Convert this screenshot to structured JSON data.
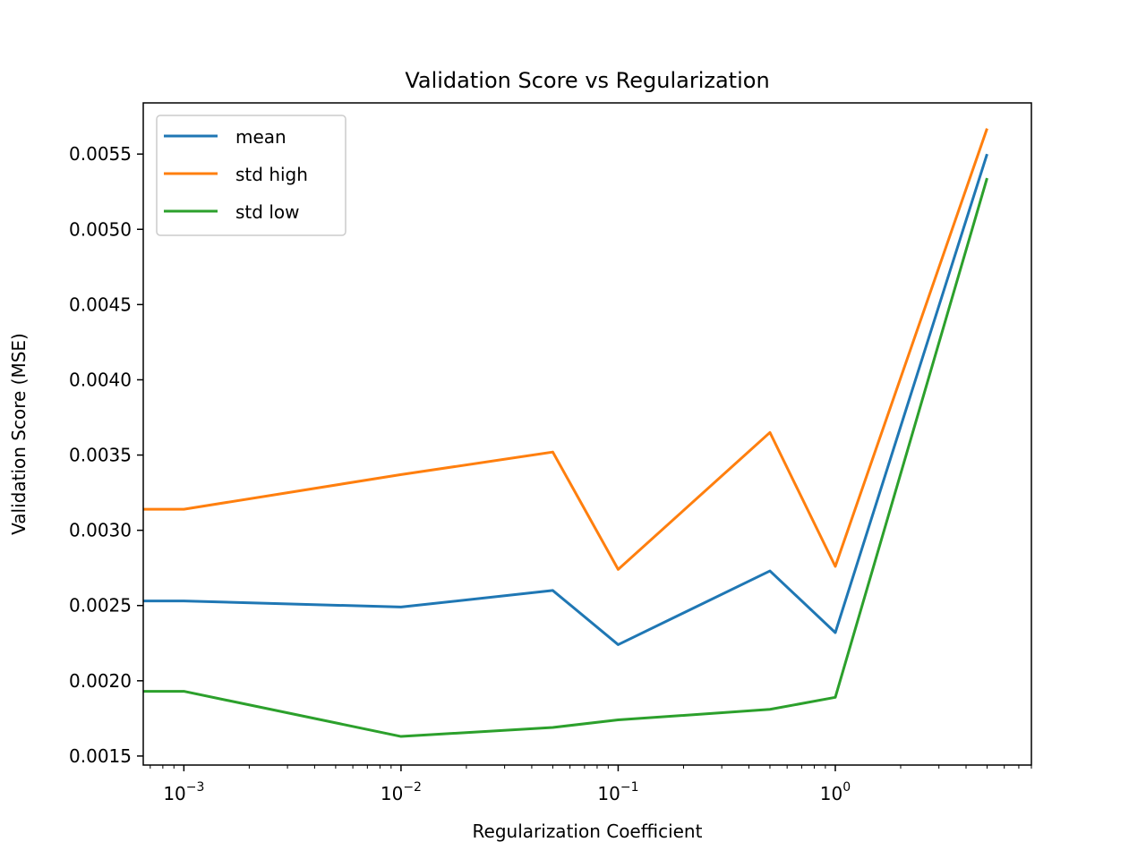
{
  "chart_data": {
    "type": "line",
    "title": "Validation Score vs Regularization",
    "xlabel": "Regularization Coefficient",
    "ylabel": "Validation Score (MSE)",
    "xscale": "log",
    "xlim": [
      0.00065,
      8.0
    ],
    "ylim": [
      0.00144,
      0.00584
    ],
    "x": [
      0.0005,
      0.001,
      0.01,
      0.05,
      0.1,
      0.5,
      1,
      5
    ],
    "series": [
      {
        "name": "mean",
        "color": "#1f77b4",
        "values": [
          0.00253,
          0.00253,
          0.00249,
          0.0026,
          0.00224,
          0.00273,
          0.00232,
          0.0055
        ]
      },
      {
        "name": "std high",
        "color": "#ff7f0e",
        "values": [
          0.00314,
          0.00314,
          0.00337,
          0.00352,
          0.00274,
          0.00365,
          0.00276,
          0.00567
        ]
      },
      {
        "name": "std low",
        "color": "#2ca02c",
        "values": [
          0.00193,
          0.00193,
          0.00163,
          0.00169,
          0.00174,
          0.00181,
          0.00189,
          0.00534
        ]
      }
    ],
    "yticks": [
      "0.0015",
      "0.0020",
      "0.0025",
      "0.0030",
      "0.0035",
      "0.0040",
      "0.0045",
      "0.0050",
      "0.0055"
    ],
    "ytick_values": [
      0.0015,
      0.002,
      0.0025,
      0.003,
      0.0035,
      0.004,
      0.0045,
      0.005,
      0.0055
    ],
    "xticks": [
      {
        "value": 0.001,
        "base": "10",
        "exp": "−3"
      },
      {
        "value": 0.01,
        "base": "10",
        "exp": "−2"
      },
      {
        "value": 0.1,
        "base": "10",
        "exp": "−1"
      },
      {
        "value": 1,
        "base": "10",
        "exp": "0"
      }
    ],
    "grid": false,
    "legend": "upper left"
  }
}
